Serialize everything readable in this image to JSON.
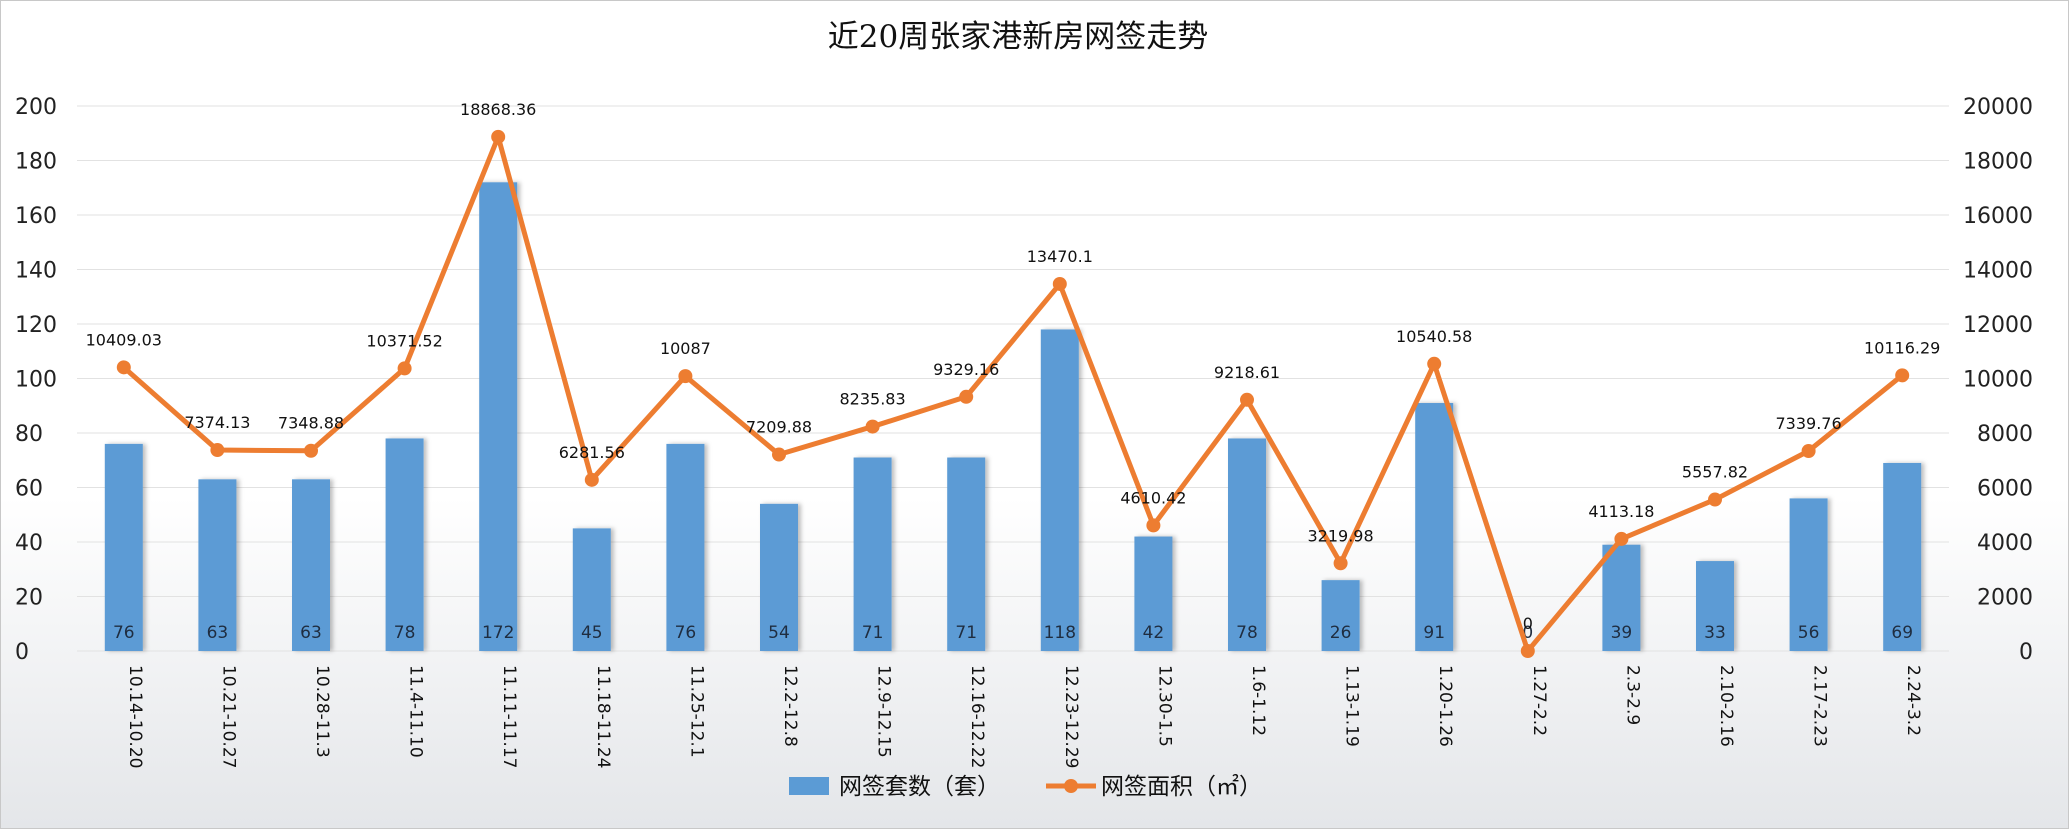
{
  "chart_data": {
    "type": "bar",
    "title": "近20周张家港新房网签走势",
    "categories": [
      "10.14-10.20",
      "10.21-10.27",
      "10.28-11.3",
      "11.4-11.10",
      "11.11-11.17",
      "11.18-11.24",
      "11.25-12.1",
      "12.2-12.8",
      "12.9-12.15",
      "12.16-12.22",
      "12.23-12.29",
      "12.30-1.5",
      "1.6-1.12",
      "1.13-1.19",
      "1.20-1.26",
      "1.27-2.2",
      "2.3-2.9",
      "2.10-2.16",
      "2.17-2.23",
      "2.24-3.2"
    ],
    "series": [
      {
        "name": "网签套数（套）",
        "type": "bar",
        "axis": "left",
        "color": "#5b9bd5",
        "values": [
          76,
          63,
          63,
          78,
          172,
          45,
          76,
          54,
          71,
          71,
          118,
          42,
          78,
          26,
          91,
          0,
          39,
          33,
          56,
          69
        ],
        "labels": [
          "76",
          "63",
          "63",
          "78",
          "172",
          "45",
          "76",
          "54",
          "71",
          "71",
          "118",
          "42",
          "78",
          "26",
          "91",
          "0",
          "39",
          "33",
          "56",
          "69"
        ]
      },
      {
        "name": "网签面积（㎡）",
        "type": "line",
        "axis": "right",
        "color": "#ed7d31",
        "values": [
          10409.03,
          7374.13,
          7348.88,
          10371.52,
          18868.36,
          6281.56,
          10087,
          7209.88,
          8235.83,
          9329.16,
          13470.1,
          4610.42,
          9218.61,
          3219.98,
          10540.58,
          0,
          4113.18,
          5557.82,
          7339.76,
          10116.29
        ],
        "labels": [
          "10409.03",
          "7374.13",
          "7348.88",
          "10371.52",
          "18868.36",
          "6281.56",
          "10087",
          "7209.88",
          "8235.83",
          "9329.16",
          "13470.1",
          "4610.42",
          "9218.61",
          "3219.98",
          "10540.58",
          "0",
          "4113.18",
          "5557.82",
          "7339.76",
          "10116.29"
        ]
      }
    ],
    "y_left": {
      "min": 0,
      "max": 200,
      "ticks": [
        "0",
        "20",
        "40",
        "60",
        "80",
        "100",
        "120",
        "140",
        "160",
        "180",
        "200"
      ]
    },
    "y_right": {
      "min": 0,
      "max": 20000,
      "ticks": [
        "0",
        "2000",
        "4000",
        "6000",
        "8000",
        "10000",
        "12000",
        "14000",
        "16000",
        "18000",
        "20000"
      ]
    },
    "grid": true,
    "legend_position": "bottom"
  }
}
